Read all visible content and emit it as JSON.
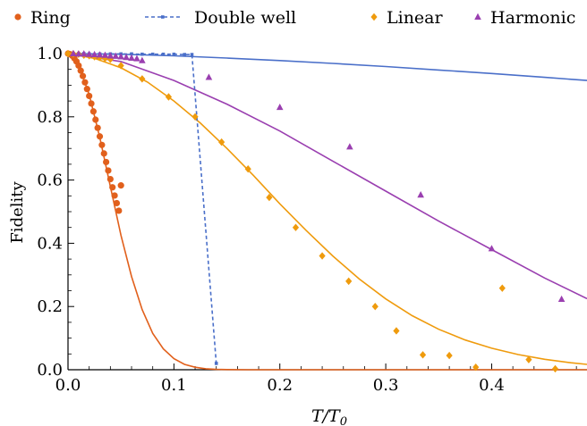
{
  "chart_data": {
    "type": "scatter",
    "xlabel": "T/T",
    "xlabel_sub": "0",
    "ylabel": "Fidelity",
    "xlim": [
      0.0,
      0.49
    ],
    "ylim": [
      0.0,
      1.0
    ],
    "xticks": [
      0.0,
      0.1,
      0.2,
      0.3,
      0.4
    ],
    "xtick_labels": [
      "0.0",
      "0.1",
      "0.2",
      "0.3",
      "0.4"
    ],
    "yticks": [
      0.0,
      0.2,
      0.4,
      0.6,
      0.8,
      1.0
    ],
    "ytick_labels": [
      "0.0",
      "0.2",
      "0.4",
      "0.6",
      "0.8",
      "1.0"
    ],
    "grid": false,
    "legend_position": "top",
    "legend": [
      {
        "name": "Ring",
        "marker": "circle",
        "color": "#e1601c"
      },
      {
        "name": "Double well",
        "marker": "dashed",
        "color": "#4a6fc9"
      },
      {
        "name": "Linear",
        "marker": "diamond",
        "color": "#ef9b0d"
      },
      {
        "name": "Harmonic",
        "marker": "triangle",
        "color": "#9a3fb0"
      }
    ],
    "series": [
      {
        "name": "Ring",
        "color": "#e1601c",
        "marker": "circle",
        "points_x": [
          0.0,
          0.002,
          0.004,
          0.006,
          0.008,
          0.01,
          0.012,
          0.014,
          0.016,
          0.018,
          0.02,
          0.022,
          0.024,
          0.026,
          0.028,
          0.03,
          0.032,
          0.034,
          0.036,
          0.038,
          0.04,
          0.042,
          0.044,
          0.046,
          0.048,
          0.05
        ],
        "points_y": [
          1.0,
          0.998,
          0.993,
          0.985,
          0.975,
          0.962,
          0.946,
          0.929,
          0.909,
          0.888,
          0.866,
          0.842,
          0.817,
          0.791,
          0.765,
          0.738,
          0.711,
          0.684,
          0.657,
          0.63,
          0.603,
          0.577,
          0.551,
          0.527,
          0.503,
          0.583
        ],
        "curve_x": [
          0.0,
          0.01,
          0.02,
          0.03,
          0.04,
          0.05,
          0.06,
          0.07,
          0.08,
          0.09,
          0.1,
          0.11,
          0.12,
          0.13,
          0.14,
          0.15,
          0.17,
          0.2,
          0.3,
          0.4,
          0.49
        ],
        "curve_y": [
          1.0,
          0.965,
          0.87,
          0.735,
          0.58,
          0.425,
          0.295,
          0.19,
          0.115,
          0.066,
          0.035,
          0.017,
          0.008,
          0.003,
          0.001,
          0.0005,
          0.0,
          0.0,
          0.0,
          0.0,
          0.0
        ]
      },
      {
        "name": "Double well",
        "color": "#4a6fc9",
        "marker": "square",
        "points_x": [
          0.005,
          0.01,
          0.015,
          0.02,
          0.03,
          0.04,
          0.05,
          0.06,
          0.07,
          0.08,
          0.09,
          0.1,
          0.11,
          0.117,
          0.14
        ],
        "points_y": [
          1.0,
          1.0,
          1.0,
          0.999,
          0.999,
          0.999,
          0.999,
          0.999,
          0.998,
          0.998,
          0.998,
          0.998,
          0.997,
          0.997,
          0.02
        ],
        "curve_x": [
          0.0,
          0.05,
          0.1,
          0.15,
          0.2,
          0.25,
          0.3,
          0.35,
          0.4,
          0.45,
          0.49
        ],
        "curve_y": [
          1.0,
          0.998,
          0.993,
          0.986,
          0.978,
          0.969,
          0.959,
          0.948,
          0.937,
          0.925,
          0.915
        ]
      },
      {
        "name": "Linear",
        "color": "#ef9b0d",
        "marker": "diamond",
        "points_x": [
          0.0,
          0.005,
          0.01,
          0.015,
          0.02,
          0.025,
          0.03,
          0.035,
          0.04,
          0.05,
          0.07,
          0.095,
          0.12,
          0.145,
          0.17,
          0.19,
          0.215,
          0.24,
          0.265,
          0.29,
          0.31,
          0.335,
          0.36,
          0.385,
          0.41,
          0.435,
          0.46
        ],
        "points_y": [
          1.0,
          0.999,
          0.998,
          0.995,
          0.993,
          0.99,
          0.988,
          0.985,
          0.982,
          0.962,
          0.92,
          0.863,
          0.8,
          0.72,
          0.635,
          0.545,
          0.45,
          0.36,
          0.28,
          0.2,
          0.123,
          0.047,
          0.045,
          0.008,
          0.258,
          0.032,
          0.003
        ],
        "curve_x": [
          0.0,
          0.025,
          0.05,
          0.075,
          0.1,
          0.125,
          0.15,
          0.175,
          0.2,
          0.225,
          0.25,
          0.275,
          0.3,
          0.325,
          0.35,
          0.375,
          0.4,
          0.425,
          0.45,
          0.475,
          0.49
        ],
        "curve_y": [
          1.0,
          0.985,
          0.955,
          0.91,
          0.85,
          0.78,
          0.7,
          0.615,
          0.525,
          0.44,
          0.36,
          0.287,
          0.224,
          0.171,
          0.128,
          0.094,
          0.068,
          0.048,
          0.033,
          0.022,
          0.017
        ]
      },
      {
        "name": "Harmonic",
        "color": "#9a3fb0",
        "marker": "triangle",
        "points_x": [
          0.005,
          0.01,
          0.015,
          0.02,
          0.025,
          0.03,
          0.035,
          0.04,
          0.045,
          0.05,
          0.055,
          0.06,
          0.065,
          0.07,
          0.133,
          0.2,
          0.266,
          0.333,
          0.4,
          0.466
        ],
        "points_y": [
          1.0,
          0.999,
          0.999,
          0.998,
          0.997,
          0.996,
          0.995,
          0.993,
          0.992,
          0.99,
          0.988,
          0.986,
          0.984,
          0.978,
          0.925,
          0.83,
          0.705,
          0.553,
          0.383,
          0.223
        ],
        "curve_x": [
          0.0,
          0.05,
          0.1,
          0.15,
          0.2,
          0.25,
          0.3,
          0.35,
          0.4,
          0.45,
          0.49
        ],
        "curve_y": [
          1.0,
          0.975,
          0.915,
          0.84,
          0.755,
          0.66,
          0.565,
          0.47,
          0.38,
          0.29,
          0.225
        ]
      }
    ]
  }
}
